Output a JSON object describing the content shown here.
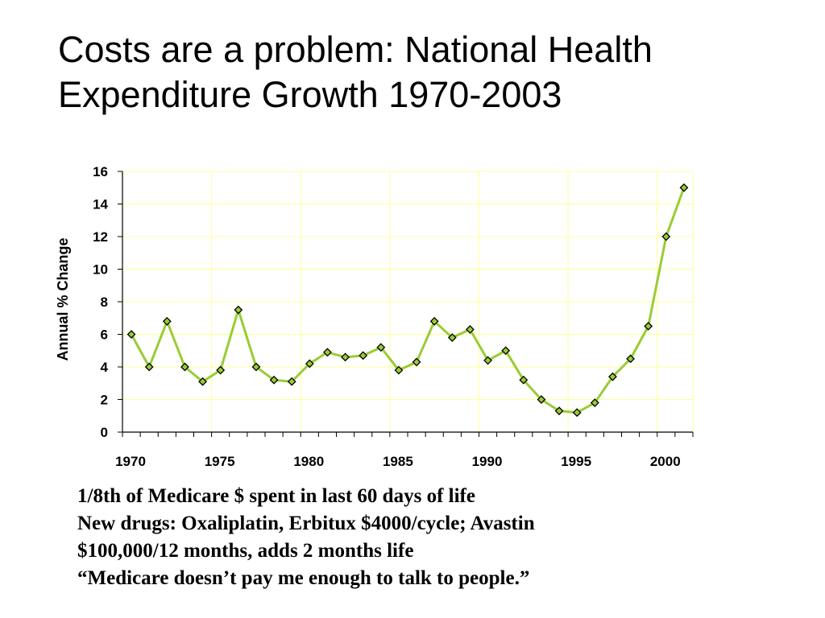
{
  "slide": {
    "title_lines": [
      "Costs are a problem: National Health",
      "Expenditure Growth 1970-2003"
    ],
    "notes": [
      "1/8th of Medicare $ spent in last 60 days of life",
      "New drugs: Oxaliplatin, Erbitux $4000/cycle; Avastin",
      "$100,000/12 months, adds 2 months life",
      "“Medicare doesn’t pay me enough to talk to people.”"
    ]
  },
  "chart_data": {
    "type": "line",
    "title": "",
    "xlabel": "",
    "ylabel": "Annual % Change",
    "x_ticks": [
      1970,
      1975,
      1980,
      1985,
      1990,
      1995,
      2000
    ],
    "y_ticks": [
      0,
      2,
      4,
      6,
      8,
      10,
      12,
      14,
      16
    ],
    "xlim": [
      1970,
      2002
    ],
    "ylim": [
      0,
      16
    ],
    "grid": true,
    "legend": "none",
    "colors": {
      "line": "#99cc33",
      "marker_fill": "#99cc33",
      "marker_edge": "#000000",
      "grid": "#ffff99",
      "axis": "#000000"
    },
    "x": [
      1970,
      1971,
      1972,
      1973,
      1974,
      1975,
      1976,
      1977,
      1978,
      1979,
      1980,
      1981,
      1982,
      1983,
      1984,
      1985,
      1986,
      1987,
      1988,
      1989,
      1990,
      1991,
      1992,
      1993,
      1994,
      1995,
      1996,
      1997,
      1998,
      1999,
      2000,
      2001
    ],
    "series": [
      {
        "values": [
          6.0,
          4.0,
          6.8,
          4.0,
          3.1,
          3.8,
          7.5,
          4.0,
          3.2,
          3.1,
          4.2,
          4.9,
          4.6,
          4.7,
          5.2,
          3.8,
          4.3,
          6.8,
          5.8,
          6.3,
          4.4,
          5.0,
          3.2,
          2.0,
          1.3,
          1.2,
          1.8,
          3.4,
          4.5,
          6.5,
          12.0,
          15.0
        ]
      }
    ]
  }
}
